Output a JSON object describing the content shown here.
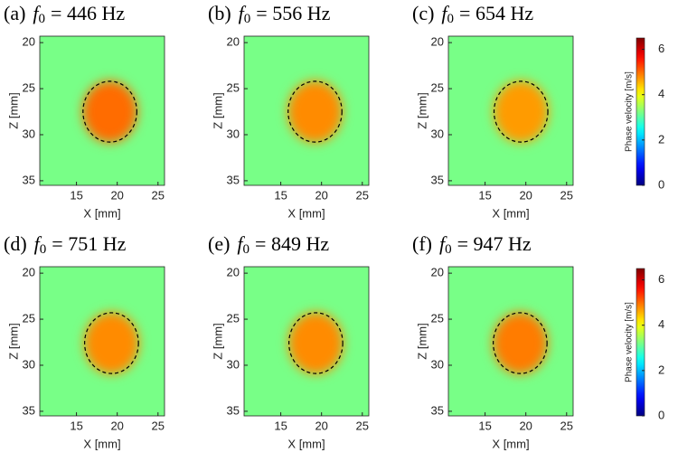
{
  "chart_data": [
    {
      "type": "heatmap",
      "title": {
        "label": "(a)",
        "symbol": "f",
        "subscript": "0",
        "text": "= 446 Hz"
      },
      "x_label": "X [mm]",
      "y_label": "Z [mm]",
      "xlim": [
        10.5,
        25.8
      ],
      "ylim": [
        19.3,
        35.5
      ],
      "xticks": [
        15,
        20,
        25
      ],
      "yticks": [
        20,
        25,
        30,
        35
      ],
      "clim": [
        0,
        6.5
      ],
      "colormap": "jet",
      "background": 3.2,
      "inclusion": 5.0,
      "inclusion_circle": {
        "center": [
          19.1,
          27.5
        ],
        "radius": 3.3
      }
    },
    {
      "type": "heatmap",
      "title": {
        "label": "(b)",
        "symbol": "f",
        "subscript": "0",
        "text": "= 556 Hz"
      },
      "x_label": "X [mm]",
      "y_label": "Z [mm]",
      "xlim": [
        10.5,
        25.8
      ],
      "ylim": [
        19.3,
        35.5
      ],
      "xticks": [
        15,
        20,
        25
      ],
      "yticks": [
        20,
        25,
        30,
        35
      ],
      "clim": [
        0,
        6.5
      ],
      "colormap": "jet",
      "background": 3.2,
      "inclusion": 4.8,
      "inclusion_circle": {
        "center": [
          19.2,
          27.5
        ],
        "radius": 3.3
      }
    },
    {
      "type": "heatmap",
      "title": {
        "label": "(c)",
        "symbol": "f",
        "subscript": "0",
        "text": "= 654 Hz"
      },
      "x_label": "X [mm]",
      "y_label": "Z [mm]",
      "xlim": [
        10.5,
        25.8
      ],
      "ylim": [
        19.3,
        35.5
      ],
      "xticks": [
        15,
        20,
        25
      ],
      "yticks": [
        20,
        25,
        30,
        35
      ],
      "clim": [
        0,
        6.5
      ],
      "colormap": "jet",
      "background": 3.2,
      "inclusion": 4.7,
      "inclusion_circle": {
        "center": [
          19.4,
          27.5
        ],
        "radius": 3.3
      },
      "colorbar": {
        "label": "Phase velocity [m/s]",
        "ticks": [
          0,
          2,
          4,
          6
        ]
      }
    },
    {
      "type": "heatmap",
      "title": {
        "label": "(d)",
        "symbol": "f",
        "subscript": "0",
        "text": "= 751 Hz"
      },
      "x_label": "X [mm]",
      "y_label": "Z [mm]",
      "xlim": [
        10.5,
        25.8
      ],
      "ylim": [
        19.3,
        35.5
      ],
      "xticks": [
        15,
        20,
        25
      ],
      "yticks": [
        20,
        25,
        30,
        35
      ],
      "clim": [
        0,
        6.5
      ],
      "colormap": "jet",
      "background": 3.2,
      "inclusion": 4.8,
      "inclusion_circle": {
        "center": [
          19.3,
          27.6
        ],
        "radius": 3.3
      }
    },
    {
      "type": "heatmap",
      "title": {
        "label": "(e)",
        "symbol": "f",
        "subscript": "0",
        "text": "= 849 Hz"
      },
      "x_label": "X [mm]",
      "y_label": "Z [mm]",
      "xlim": [
        10.5,
        25.8
      ],
      "ylim": [
        19.3,
        35.5
      ],
      "xticks": [
        15,
        20,
        25
      ],
      "yticks": [
        20,
        25,
        30,
        35
      ],
      "clim": [
        0,
        6.5
      ],
      "colormap": "jet",
      "background": 3.2,
      "inclusion": 4.8,
      "inclusion_circle": {
        "center": [
          19.3,
          27.6
        ],
        "radius": 3.3
      }
    },
    {
      "type": "heatmap",
      "title": {
        "label": "(f)",
        "symbol": "f",
        "subscript": "0",
        "text": "= 947 Hz"
      },
      "x_label": "X [mm]",
      "y_label": "Z [mm]",
      "xlim": [
        10.5,
        25.8
      ],
      "ylim": [
        19.3,
        35.5
      ],
      "xticks": [
        15,
        20,
        25
      ],
      "yticks": [
        20,
        25,
        30,
        35
      ],
      "clim": [
        0,
        6.5
      ],
      "colormap": "jet",
      "background": 3.2,
      "inclusion": 4.9,
      "inclusion_circle": {
        "center": [
          19.3,
          27.6
        ],
        "radius": 3.3
      },
      "colorbar": {
        "label": "Phase velocity [m/s]",
        "ticks": [
          0,
          2,
          4,
          6
        ]
      }
    }
  ]
}
